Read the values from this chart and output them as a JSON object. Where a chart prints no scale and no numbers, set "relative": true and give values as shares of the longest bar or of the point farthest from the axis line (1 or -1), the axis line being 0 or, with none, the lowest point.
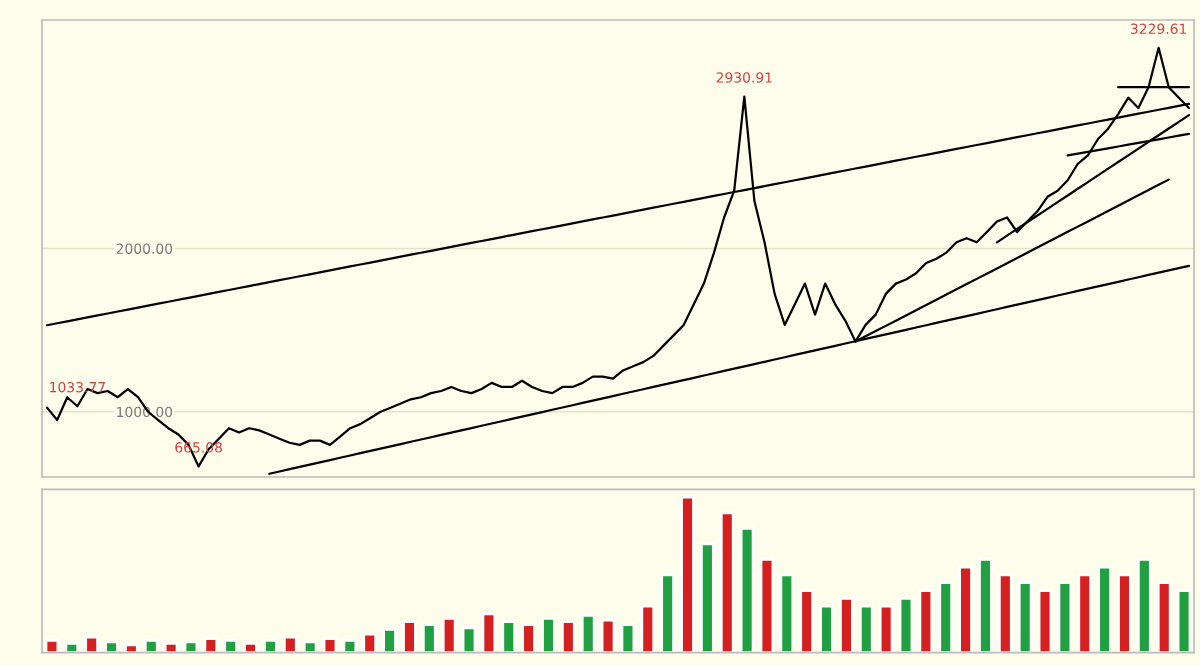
{
  "chart_data": [
    {
      "type": "line",
      "tick_labels": "y",
      "grid": "y",
      "ylim": [
        600,
        3400
      ],
      "yticks": [
        {
          "value": 1000,
          "label": "1000.00"
        },
        {
          "value": 2000,
          "label": "2000.00"
        }
      ],
      "categories": [
        null,
        null,
        null,
        null,
        null,
        null,
        null,
        null,
        null,
        null,
        null,
        null,
        null,
        null,
        null,
        null,
        null,
        null,
        null,
        null,
        null,
        null,
        null,
        null,
        null,
        null,
        null,
        null,
        null,
        null,
        null,
        null,
        null,
        null,
        null,
        null,
        null,
        null,
        null,
        null,
        null,
        null,
        null,
        null,
        null,
        null,
        null,
        null,
        null,
        null,
        null,
        null,
        null,
        null,
        null,
        null,
        null,
        null,
        null,
        null,
        null,
        null,
        null,
        null,
        null,
        null,
        null,
        null,
        null,
        null,
        null,
        null,
        null,
        null,
        null,
        null,
        null,
        null,
        null,
        null,
        null,
        null,
        null,
        null,
        null,
        null,
        null,
        null,
        null,
        null,
        null,
        null,
        null,
        null,
        null,
        null,
        null,
        null,
        null,
        null,
        null,
        null,
        null,
        null,
        null,
        null,
        null,
        null,
        null,
        null,
        null,
        null,
        null,
        null
      ],
      "series": [
        {
          "color": "#000000",
          "values": [
            1025,
            949,
            1089,
            1033.77,
            1139,
            1114,
            1127,
            1089,
            1139,
            1089,
            1000,
            949,
            899,
            861,
            797,
            665.08,
            772,
            835,
            899,
            873,
            899,
            886,
            861,
            835,
            810,
            797,
            823,
            823,
            797,
            848,
            899,
            924,
            962,
            1000,
            1025,
            1051,
            1076,
            1089,
            1114,
            1127,
            1152,
            1127,
            1114,
            1139,
            1177,
            1152,
            1152,
            1190,
            1152,
            1127,
            1114,
            1152,
            1152,
            1177,
            1215,
            1215,
            1203,
            1253,
            1279,
            1304,
            1342,
            1405,
            1468,
            1532,
            1658,
            1785,
            1975,
            2190,
            2354,
            2930.91,
            2291,
            2038,
            1722,
            1532,
            1658,
            1785,
            1595,
            1785,
            1658,
            1557,
            1430,
            1532,
            1595,
            1722,
            1785,
            1810,
            1848,
            1911,
            1937,
            1975,
            2038,
            2063,
            2038,
            2101,
            2165,
            2190,
            2101,
            2165,
            2228,
            2317,
            2354,
            2418,
            2519,
            2570,
            2671,
            2734,
            2823,
            2924,
            2861,
            2988,
            3229.61,
            2988,
            2924,
            2861
          ],
          "value_labels": [
            null,
            null,
            null,
            "1033.77",
            null,
            null,
            null,
            null,
            null,
            null,
            null,
            null,
            null,
            null,
            null,
            "665.08",
            null,
            null,
            null,
            null,
            null,
            null,
            null,
            null,
            null,
            null,
            null,
            null,
            null,
            null,
            null,
            null,
            null,
            null,
            null,
            null,
            null,
            null,
            null,
            null,
            null,
            null,
            null,
            null,
            null,
            null,
            null,
            null,
            null,
            null,
            null,
            null,
            null,
            null,
            null,
            null,
            null,
            null,
            null,
            null,
            null,
            null,
            null,
            null,
            null,
            null,
            null,
            null,
            null,
            "2930.91",
            null,
            null,
            null,
            null,
            null,
            null,
            null,
            null,
            null,
            null,
            null,
            null,
            null,
            null,
            null,
            null,
            null,
            null,
            null,
            null,
            null,
            null,
            null,
            null,
            null,
            null,
            null,
            null,
            null,
            null,
            null,
            null,
            null,
            null,
            null,
            null,
            null,
            null,
            null,
            null,
            "3229.61",
            null,
            null,
            null
          ]
        },
        {
          "color": "#000000",
          "values": [
            1530,
            1542,
            1554,
            1566,
            1578,
            1590,
            1602,
            1614,
            1626,
            1638,
            1650,
            1662,
            1674,
            1686,
            1698,
            1710,
            1722,
            1734,
            1746,
            1758,
            1770,
            1782,
            1794,
            1806,
            1818,
            1830,
            1842,
            1854,
            1866,
            1878,
            1890,
            1902,
            1914,
            1926,
            1938,
            1950,
            1962,
            1974,
            1986,
            1998,
            2010,
            2022,
            2034,
            2046,
            2058,
            2070,
            2082,
            2094,
            2106,
            2118,
            2130,
            2142,
            2154,
            2166,
            2178,
            2190,
            2202,
            2214,
            2226,
            2238,
            2250,
            2262,
            2274,
            2286,
            2298,
            2310,
            2322,
            2334,
            2346,
            2358,
            2370,
            2382,
            2394,
            2406,
            2418,
            2430,
            2442,
            2454,
            2466,
            2478,
            2490,
            2502,
            2514,
            2526,
            2538,
            2550,
            2562,
            2574,
            2586,
            2598,
            2610,
            2622,
            2634,
            2646,
            2658,
            2670,
            2682,
            2694,
            2706,
            2718,
            2730,
            2742,
            2754,
            2766,
            2778,
            2790,
            2802,
            2814,
            2826,
            2838,
            2850,
            2862,
            2874,
            2886
          ]
        },
        {
          "color": "#000000",
          "values": [
            null,
            null,
            null,
            null,
            null,
            null,
            null,
            null,
            null,
            null,
            null,
            null,
            null,
            null,
            null,
            null,
            null,
            null,
            null,
            null,
            null,
            null,
            620,
            634,
            648,
            662,
            676,
            690,
            704,
            718,
            732,
            746,
            760,
            774,
            788,
            802,
            816,
            830,
            844,
            858,
            872,
            886,
            900,
            914,
            928,
            942,
            956,
            970,
            984,
            998,
            1012,
            1026,
            1040,
            1054,
            1068,
            1082,
            1096,
            1110,
            1124,
            1138,
            1152,
            1166,
            1180,
            1194,
            1208,
            1222,
            1236,
            1250,
            1264,
            1278,
            1292,
            1306,
            1320,
            1334,
            1348,
            1362,
            1376,
            1390,
            1404,
            1418,
            1432,
            1446,
            1460,
            1474,
            1488,
            1502,
            1516,
            1530,
            1544,
            1558,
            1572,
            1586,
            1600,
            1614,
            1628,
            1642,
            1656,
            1670,
            1684,
            1698,
            1712,
            1726,
            1740,
            1754,
            1768,
            1782,
            1796,
            1810,
            1824,
            1838,
            1852,
            1866,
            1880,
            1894
          ]
        },
        {
          "color": "#000000",
          "values": [
            null,
            null,
            null,
            null,
            null,
            null,
            null,
            null,
            null,
            null,
            null,
            null,
            null,
            null,
            null,
            null,
            null,
            null,
            null,
            null,
            null,
            null,
            null,
            null,
            null,
            null,
            null,
            null,
            null,
            null,
            null,
            null,
            null,
            null,
            null,
            null,
            null,
            null,
            null,
            null,
            null,
            null,
            null,
            null,
            null,
            null,
            null,
            null,
            null,
            null,
            null,
            null,
            null,
            null,
            null,
            null,
            null,
            null,
            null,
            null,
            null,
            null,
            null,
            null,
            null,
            null,
            null,
            null,
            null,
            null,
            null,
            null,
            null,
            null,
            null,
            null,
            null,
            null,
            null,
            null,
            1430,
            1462,
            1494,
            1526,
            1558,
            1590,
            1622,
            1654,
            1686,
            1718,
            1750,
            1782,
            1814,
            1846,
            1878,
            1910,
            1942,
            1974,
            2006,
            2038,
            2070,
            2102,
            2134,
            2166,
            2198,
            2230,
            2262,
            2294,
            2326,
            2358,
            2390,
            2422,
            null,
            null
          ]
        },
        {
          "color": "#000000",
          "values": [
            null,
            null,
            null,
            null,
            null,
            null,
            null,
            null,
            null,
            null,
            null,
            null,
            null,
            null,
            null,
            null,
            null,
            null,
            null,
            null,
            null,
            null,
            null,
            null,
            null,
            null,
            null,
            null,
            null,
            null,
            null,
            null,
            null,
            null,
            null,
            null,
            null,
            null,
            null,
            null,
            null,
            null,
            null,
            null,
            null,
            null,
            null,
            null,
            null,
            null,
            null,
            null,
            null,
            null,
            null,
            null,
            null,
            null,
            null,
            null,
            null,
            null,
            null,
            null,
            null,
            null,
            null,
            null,
            null,
            null,
            null,
            null,
            null,
            null,
            null,
            null,
            null,
            null,
            null,
            null,
            null,
            null,
            null,
            null,
            null,
            null,
            null,
            null,
            null,
            null,
            null,
            null,
            null,
            null,
            2038,
            2079,
            2120,
            2161,
            2202,
            2243,
            2284,
            2325,
            2366,
            2407,
            2448,
            2489,
            2530,
            2571,
            2612,
            2653,
            2694,
            2735,
            2776,
            2817
          ]
        },
        {
          "color": "#000000",
          "values": [
            null,
            null,
            null,
            null,
            null,
            null,
            null,
            null,
            null,
            null,
            null,
            null,
            null,
            null,
            null,
            null,
            null,
            null,
            null,
            null,
            null,
            null,
            null,
            null,
            null,
            null,
            null,
            null,
            null,
            null,
            null,
            null,
            null,
            null,
            null,
            null,
            null,
            null,
            null,
            null,
            null,
            null,
            null,
            null,
            null,
            null,
            null,
            null,
            null,
            null,
            null,
            null,
            null,
            null,
            null,
            null,
            null,
            null,
            null,
            null,
            null,
            null,
            null,
            null,
            null,
            null,
            null,
            null,
            null,
            null,
            null,
            null,
            null,
            null,
            null,
            null,
            null,
            null,
            null,
            null,
            null,
            null,
            null,
            null,
            null,
            null,
            null,
            null,
            null,
            null,
            null,
            null,
            null,
            null,
            null,
            null,
            null,
            null,
            null,
            null,
            null,
            2570,
            2581,
            2592,
            2603,
            2614,
            2625,
            2636,
            2647,
            2658,
            2669,
            2680,
            2691,
            2702
          ]
        },
        {
          "color": "#000000",
          "values": [
            null,
            null,
            null,
            null,
            null,
            null,
            null,
            null,
            null,
            null,
            null,
            null,
            null,
            null,
            null,
            null,
            null,
            null,
            null,
            null,
            null,
            null,
            null,
            null,
            null,
            null,
            null,
            null,
            null,
            null,
            null,
            null,
            null,
            null,
            null,
            null,
            null,
            null,
            null,
            null,
            null,
            null,
            null,
            null,
            null,
            null,
            null,
            null,
            null,
            null,
            null,
            null,
            null,
            null,
            null,
            null,
            null,
            null,
            null,
            null,
            null,
            null,
            null,
            null,
            null,
            null,
            null,
            null,
            null,
            null,
            null,
            null,
            null,
            null,
            null,
            null,
            null,
            null,
            null,
            null,
            null,
            null,
            null,
            null,
            null,
            null,
            null,
            null,
            null,
            null,
            null,
            null,
            null,
            null,
            null,
            null,
            null,
            null,
            null,
            null,
            null,
            null,
            null,
            null,
            null,
            null,
            2988,
            2988,
            2988,
            2988,
            2988,
            2988,
            2988,
            2988
          ]
        }
      ]
    },
    {
      "type": "bar",
      "relative": true,
      "tick_labels": false,
      "categories": [
        null,
        null,
        null,
        null,
        null,
        null,
        null,
        null,
        null,
        null,
        null,
        null,
        null,
        null,
        null,
        null,
        null,
        null,
        null,
        null,
        null,
        null,
        null,
        null,
        null,
        null,
        null,
        null,
        null,
        null,
        null,
        null,
        null,
        null,
        null,
        null,
        null,
        null,
        null,
        null,
        null,
        null,
        null,
        null,
        null,
        null,
        null,
        null,
        null,
        null,
        null,
        null,
        null,
        null,
        null,
        null,
        null,
        null
      ],
      "values": [
        0.08,
        0.06,
        0.1,
        0.07,
        0.05,
        0.08,
        0.06,
        0.07,
        0.09,
        0.08,
        0.06,
        0.08,
        0.1,
        0.07,
        0.09,
        0.08,
        0.12,
        0.15,
        0.2,
        0.18,
        0.22,
        0.16,
        0.25,
        0.2,
        0.18,
        0.22,
        0.2,
        0.24,
        0.21,
        0.18,
        0.3,
        0.5,
        1,
        0.7,
        0.9,
        0.8,
        0.6,
        0.5,
        0.4,
        0.3,
        0.35,
        0.3,
        0.3,
        0.35,
        0.4,
        0.45,
        0.55,
        0.6,
        0.5,
        0.45,
        0.4,
        0.45,
        0.5,
        0.55,
        0.5,
        0.6,
        0.45,
        0.4
      ],
      "colors": [
        "#d62020",
        "#20a040",
        "#d62020",
        "#20a040",
        "#d62020",
        "#20a040",
        "#d62020",
        "#20a040",
        "#d62020",
        "#20a040",
        "#d62020",
        "#20a040",
        "#d62020",
        "#20a040",
        "#d62020",
        "#20a040",
        "#d62020",
        "#20a040",
        "#d62020",
        "#20a040",
        "#d62020",
        "#20a040",
        "#d62020",
        "#20a040",
        "#d62020",
        "#20a040",
        "#d62020",
        "#20a040",
        "#d62020",
        "#20a040",
        "#d62020",
        "#20a040",
        "#d62020",
        "#20a040",
        "#d62020",
        "#20a040",
        "#d62020",
        "#20a040",
        "#d62020",
        "#20a040",
        "#d62020",
        "#20a040",
        "#d62020",
        "#20a040",
        "#d62020",
        "#20a040",
        "#d62020",
        "#20a040",
        "#d62020",
        "#20a040",
        "#d62020",
        "#20a040",
        "#d62020",
        "#20a040",
        "#d62020",
        "#20a040",
        "#d62020",
        "#20a040"
      ]
    }
  ]
}
